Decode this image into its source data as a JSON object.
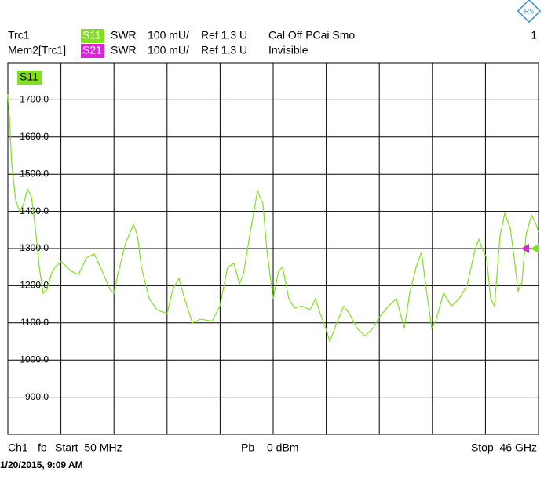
{
  "traces": [
    {
      "name": "Trc1",
      "param": "S11",
      "format": "SWR",
      "scale": "100 mU/",
      "ref": "Ref 1.3 U",
      "info": "Cal Off PCai Smo",
      "color": "#80e020"
    },
    {
      "name": "Mem2[Trc1]",
      "param": "S21",
      "format": "SWR",
      "scale": "100 mU/",
      "ref": "Ref 1.3 U",
      "info": "Invisible",
      "color": "#e020e0"
    }
  ],
  "channel_number": "1",
  "footer": {
    "channel": "Ch1",
    "sweep": "fb",
    "start": "Start  50 MHz",
    "power_label": "Pb",
    "power": "0 dBm",
    "stop": "Stop  46 GHz"
  },
  "timestamp": "1/20/2015, 9:09 AM",
  "chart_data": {
    "type": "line",
    "x": [
      0.05,
      0.19,
      0.39,
      0.73,
      1.07,
      1.41,
      1.75,
      2.09,
      2.43,
      2.77,
      3.11,
      3.45,
      3.79,
      4.13,
      4.67,
      5.49,
      6.17,
      6.85,
      7.53,
      8.21,
      8.89,
      9.23,
      9.57,
      10.25,
      10.93,
      11.27,
      11.61,
      12.29,
      12.97,
      13.85,
      14.33,
      14.87,
      15.35,
      16.03,
      16.71,
      17.73,
      18.41,
      19.08,
      19.63,
      20.1,
      20.44,
      20.99,
      21.67,
      22.14,
      22.48,
      23.02,
      23.5,
      23.84,
      24.38,
      24.86,
      25.54,
      26.22,
      26.69,
      27.1,
      27.58,
      27.92,
      28.6,
      29.14,
      29.62,
      30.3,
      30.98,
      31.66,
      32.2,
      33.02,
      33.7,
      34.38,
      34.85,
      35.4,
      35.87,
      36.28,
      36.76,
      37.1,
      37.78,
      38.46,
      39.13,
      39.81,
      40.49,
      40.83,
      41.17,
      41.51,
      41.85,
      42.19,
      42.67,
      43.08,
      43.55,
      43.89,
      44.23,
      44.57,
      44.91,
      45.39,
      45.73,
      46
    ],
    "series": [
      {
        "name": "S11",
        "color": "#80e020",
        "values": [
          1715,
          1650,
          1525,
          1430,
          1400,
          1420,
          1460,
          1440,
          1355,
          1250,
          1180,
          1190,
          1230,
          1250,
          1265,
          1240,
          1230,
          1275,
          1285,
          1240,
          1190,
          1180,
          1230,
          1315,
          1365,
          1335,
          1250,
          1165,
          1135,
          1125,
          1190,
          1220,
          1165,
          1100,
          1110,
          1105,
          1145,
          1250,
          1260,
          1205,
          1230,
          1335,
          1455,
          1420,
          1295,
          1165,
          1240,
          1250,
          1165,
          1140,
          1145,
          1135,
          1165,
          1125,
          1085,
          1050,
          1105,
          1145,
          1125,
          1085,
          1065,
          1085,
          1115,
          1145,
          1165,
          1085,
          1180,
          1250,
          1290,
          1190,
          1085,
          1105,
          1180,
          1145,
          1165,
          1200,
          1295,
          1325,
          1295,
          1275,
          1165,
          1145,
          1335,
          1395,
          1355,
          1275,
          1185,
          1210,
          1335,
          1390,
          1370,
          1345
        ]
      }
    ],
    "xlim": [
      0.05,
      46
    ],
    "xticks": [
      4.645,
      9.24,
      13.835,
      18.43,
      23.025,
      27.62,
      32.215,
      36.81,
      41.405
    ],
    "ylim": [
      800,
      1800
    ],
    "yticks": [
      {
        "value": 900,
        "label": "900.0"
      },
      {
        "value": 1000,
        "label": "1000.0"
      },
      {
        "value": 1100,
        "label": "1100.0"
      },
      {
        "value": 1200,
        "label": "1200.0"
      },
      {
        "value": 1300,
        "label": "1300.0"
      },
      {
        "value": 1400,
        "label": "1400.0"
      },
      {
        "value": 1500,
        "label": "1500.0"
      },
      {
        "value": 1600,
        "label": "1600.0"
      },
      {
        "value": 1700,
        "label": "1700.0"
      }
    ],
    "grid": true
  }
}
